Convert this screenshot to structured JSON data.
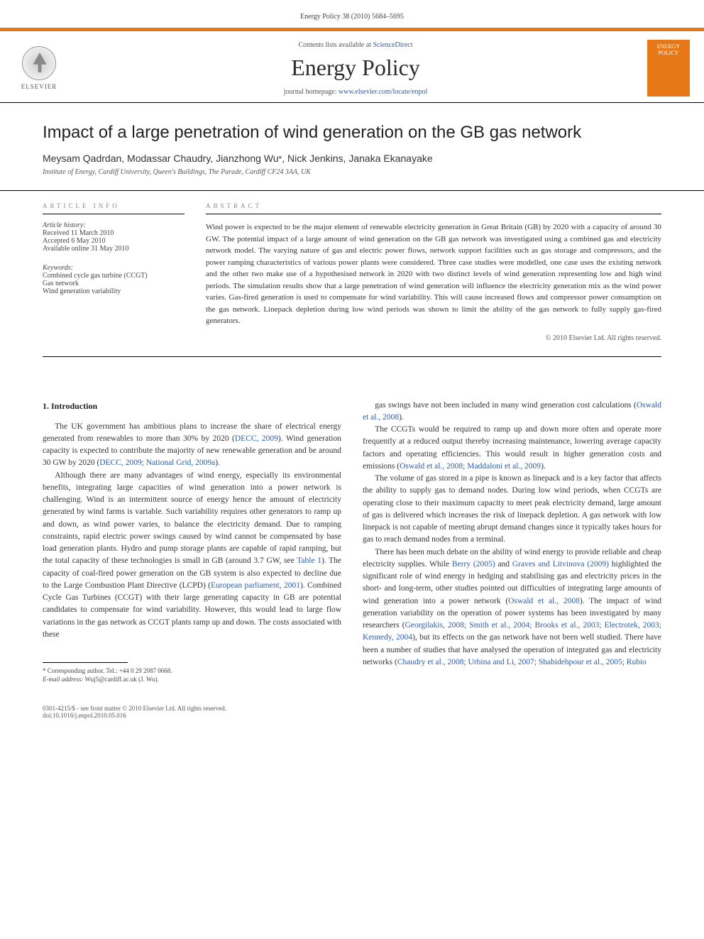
{
  "header": {
    "citation": "Energy Policy 38 (2010) 5684–5695"
  },
  "banner": {
    "elsevier_label": "ELSEVIER",
    "contents_prefix": "Contents lists available at ",
    "contents_link": "ScienceDirect",
    "journal_name": "Energy Policy",
    "homepage_prefix": "journal homepage: ",
    "homepage_url": "www.elsevier.com/locate/enpol",
    "cover_text": "ENERGY POLICY"
  },
  "title": "Impact of a large penetration of wind generation on the GB gas network",
  "authors": "Meysam Qadrdan, Modassar Chaudry, Jianzhong Wu",
  "authors_corr_mark": "*",
  "authors_rest": ", Nick Jenkins, Janaka Ekanayake",
  "affiliation": "Institute of Energy, Cardiff University, Queen's Buildings, The Parade, Cardiff CF24 3AA, UK",
  "info": {
    "heading": "ARTICLE INFO",
    "history_label": "Article history:",
    "received": "Received 11 March 2010",
    "accepted": "Accepted 6 May 2010",
    "online": "Available online 31 May 2010",
    "keywords_label": "Keywords:",
    "kw1": "Combined cycle gas turbine (CCGT)",
    "kw2": "Gas network",
    "kw3": "Wind generation variability"
  },
  "abstract": {
    "heading": "ABSTRACT",
    "text": "Wind power is expected to be the major element of renewable electricity generation in Great Britain (GB) by 2020 with a capacity of around 30 GW. The potential impact of a large amount of wind generation on the GB gas network was investigated using a combined gas and electricity network model. The varying nature of gas and electric power flows, network support facilities such as gas storage and compressors, and the power ramping characteristics of various power plants were considered. Three case studies were modelled, one case uses the existing network and the other two make use of a hypothesised network in 2020 with two distinct levels of wind generation representing low and high wind periods. The simulation results show that a large penetration of wind generation will influence the electricity generation mix as the wind power varies. Gas-fired generation is used to compensate for wind variability. This will cause increased flows and compressor power consumption on the gas network. Linepack depletion during low wind periods was shown to limit the ability of the gas network to fully supply gas-fired generators.",
    "copyright": "© 2010 Elsevier Ltd. All rights reserved."
  },
  "body": {
    "section1_heading": "1. Introduction",
    "left_p1a": "The UK government has ambitious plans to increase the share of electrical energy generated from renewables to more than 30% by 2020 (",
    "left_p1_ref1": "DECC, 2009",
    "left_p1b": "). Wind generation capacity is expected to contribute the majority of new renewable generation and be around 30 GW by 2020 (",
    "left_p1_ref2": "DECC, 2009; National Grid, 2009a",
    "left_p1c": ").",
    "left_p2a": "Although there are many advantages of wind energy, especially its environmental benefits, integrating large capacities of wind generation into a power network is challenging. Wind is an intermittent source of energy hence the amount of electricity generated by wind farms is variable. Such variability requires other generators to ramp up and down, as wind power varies, to balance the electricity demand. Due to ramping constraints, rapid electric power swings caused by wind cannot be compensated by base load generation plants. Hydro and pump storage plants are capable of rapid ramping, but the total capacity of these technologies is small in GB (around 3.7 GW, see ",
    "left_p2_ref1": "Table 1",
    "left_p2b": "). The capacity of coal-fired power generation on the GB system is also expected to decline due to the Large Combustion Plant Directive (LCPD) (",
    "left_p2_ref2": "European parliament, 2001",
    "left_p2c": "). Combined Cycle Gas Turbines (CCGT) with their large generating capacity in GB are potential candidates to compensate for wind variability. However, this would lead to large flow variations in the gas network as CCGT plants ramp up and down. The costs associated with these",
    "right_p1a": "gas swings have not been included in many wind generation cost calculations (",
    "right_p1_ref1": "Oswald et al., 2008",
    "right_p1b": ").",
    "right_p2a": "The CCGTs would be required to ramp up and down more often and operate more frequently at a reduced output thereby increasing maintenance, lowering average capacity factors and operating efficiencies. This would result in higher generation costs and emissions (",
    "right_p2_ref1": "Oswald et al., 2008; Maddaloni et al., 2009",
    "right_p2b": ").",
    "right_p3": "The volume of gas stored in a pipe is known as linepack and is a key factor that affects the ability to supply gas to demand nodes. During low wind periods, when CCGTs are operating close to their maximum capacity to meet peak electricity demand, large amount of gas is delivered which increases the risk of linepack depletion. A gas network with low linepack is not capable of meeting abrupt demand changes since it typically takes hours for gas to reach demand nodes from a terminal.",
    "right_p4a": "There has been much debate on the ability of wind energy to provide reliable and cheap electricity supplies. While ",
    "right_p4_ref1": "Berry (2005)",
    "right_p4b": " and ",
    "right_p4_ref2": "Graves and Litvinova (2009)",
    "right_p4c": " highlighted the significant role of wind energy in hedging and stabilising gas and electricity prices in the short- and long-term, other studies pointed out difficulties of integrating large amounts of wind generation into a power network (",
    "right_p4_ref3": "Oswald et al., 2008",
    "right_p4d": "). The impact of wind generation variability on the operation of power systems has been investigated by many researchers (",
    "right_p4_ref4": "Georgilakis, 2008; Smith et al., 2004; Brooks et al., 2003; Electrotek, 2003; Kennedy, 2004",
    "right_p4e": "), but its effects on the gas network have not been well studied. There have been a number of studies that have analysed the operation of integrated gas and electricity networks (",
    "right_p4_ref5": "Chaudry et al., 2008; Urbina and Li, 2007; Shahidehpour et al., 2005; Rubio",
    "footnote_mark": "* Corresponding author. Tel.: +44 0 29 2087 0668.",
    "footnote_email_label": "E-mail address:",
    "footnote_email": " Wuj5@cardiff.ac.uk (J. Wu)."
  },
  "footer": {
    "issn_line": "0301-4215/$ - see front matter © 2010 Elsevier Ltd. All rights reserved.",
    "doi_line": "doi:10.1016/j.enpol.2010.05.016"
  },
  "colors": {
    "accent": "#e67817",
    "link": "#2a5db0",
    "text": "#333333",
    "heading_gray": "#888888"
  }
}
